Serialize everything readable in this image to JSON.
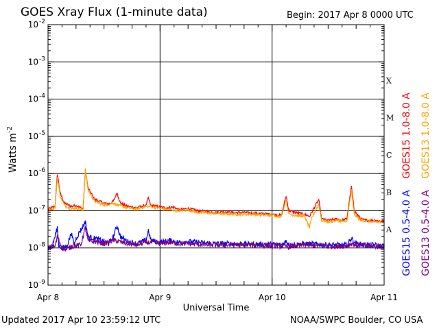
{
  "header": {
    "title": "GOES Xray Flux (1-minute data)",
    "begin": "Begin:  2017 Apr 8 0000 UTC"
  },
  "footer": {
    "updated": "Updated 2017 Apr 10 23:59:12 UTC",
    "credit": "NOAA/SWPC Boulder, CO USA"
  },
  "chart_data": {
    "type": "line",
    "title": "GOES Xray Flux (1-minute data)",
    "xlabel": "Universal Time",
    "ylabel": "Watts m",
    "ylabel_sup": "-2",
    "yscale": "log",
    "ylim": [
      1e-09,
      0.01
    ],
    "xlim": [
      0,
      72
    ],
    "x_unit": "hours since 2017 Apr 8 0000 UTC",
    "x_ticks": [
      {
        "x": 0,
        "label": "Apr 8"
      },
      {
        "x": 24,
        "label": "Apr 9"
      },
      {
        "x": 48,
        "label": "Apr 10"
      },
      {
        "x": 72,
        "label": "Apr 11"
      }
    ],
    "y_ticks": [
      {
        "exp": -9
      },
      {
        "exp": -8
      },
      {
        "exp": -7
      },
      {
        "exp": -6
      },
      {
        "exp": -5
      },
      {
        "exp": -4
      },
      {
        "exp": -3
      },
      {
        "exp": -2
      }
    ],
    "flare_classes": [
      {
        "label": "A",
        "exp": -8
      },
      {
        "label": "B",
        "exp": -7
      },
      {
        "label": "C",
        "exp": -6
      },
      {
        "label": "M",
        "exp": -5
      },
      {
        "label": "X",
        "exp": -4
      }
    ],
    "grid": "horizontal lines at each decade from 1e-8 to 1e-3",
    "series": [
      {
        "name": "GOES15 1.0-8.0 A",
        "color": "#ff0000",
        "points": [
          [
            0,
            1.1e-07
          ],
          [
            1.5,
            1.3e-07
          ],
          [
            2.0,
            1e-06
          ],
          [
            2.6,
            3e-07
          ],
          [
            3.5,
            1.6e-07
          ],
          [
            5.0,
            1.3e-07
          ],
          [
            6.0,
            1.4e-07
          ],
          [
            7.5,
            1.1e-07
          ],
          [
            8.0,
            1.2e-06
          ],
          [
            8.6,
            4e-07
          ],
          [
            10.0,
            2e-07
          ],
          [
            12.0,
            1.6e-07
          ],
          [
            13.0,
            1.5e-07
          ],
          [
            14.0,
            1.8e-07
          ],
          [
            14.8,
            3e-07
          ],
          [
            15.5,
            1.6e-07
          ],
          [
            17.0,
            1.3e-07
          ],
          [
            19.0,
            1.2e-07
          ],
          [
            21.0,
            1.4e-07
          ],
          [
            21.5,
            2.2e-07
          ],
          [
            22.0,
            1.4e-07
          ],
          [
            25.0,
            1.2e-07
          ],
          [
            27.0,
            1.25e-07
          ],
          [
            28.0,
            1.05e-07
          ],
          [
            30.0,
            1.15e-07
          ],
          [
            32.0,
            1e-07
          ],
          [
            36.0,
            9e-08
          ],
          [
            38.0,
            9.5e-08
          ],
          [
            40.0,
            8.8e-08
          ],
          [
            42.0,
            9e-08
          ],
          [
            44.0,
            8.5e-08
          ],
          [
            48.0,
            8e-08
          ],
          [
            50.0,
            7.5e-08
          ],
          [
            51.0,
            2.5e-07
          ],
          [
            51.6,
            1e-07
          ],
          [
            53.0,
            9e-08
          ],
          [
            55.0,
            8e-08
          ],
          [
            56.0,
            7e-08
          ],
          [
            58.0,
            2e-07
          ],
          [
            58.6,
            6e-08
          ],
          [
            60.0,
            5.5e-08
          ],
          [
            62.0,
            6e-08
          ],
          [
            63.0,
            5.5e-08
          ],
          [
            64.0,
            6e-08
          ],
          [
            65.0,
            4.5e-07
          ],
          [
            65.6,
            1e-07
          ],
          [
            67.0,
            6e-08
          ],
          [
            68.0,
            5.5e-08
          ],
          [
            70.0,
            5.5e-08
          ],
          [
            72.0,
            5.2e-08
          ]
        ]
      },
      {
        "name": "GOES13 1.0-8.0 A",
        "color": "#ffa500",
        "points": [
          [
            0,
            1e-07
          ],
          [
            1.5,
            1.2e-07
          ],
          [
            2.0,
            8e-07
          ],
          [
            2.6,
            2.5e-07
          ],
          [
            3.5,
            1.4e-07
          ],
          [
            5.0,
            1.1e-07
          ],
          [
            6.0,
            1.2e-07
          ],
          [
            7.5,
            1e-07
          ],
          [
            8.0,
            1.3e-06
          ],
          [
            8.6,
            3.5e-07
          ],
          [
            10.0,
            1.8e-07
          ],
          [
            12.0,
            1.4e-07
          ],
          [
            14.0,
            1.6e-07
          ],
          [
            15.0,
            1.4e-07
          ],
          [
            17.0,
            1.2e-07
          ],
          [
            19.0,
            1.1e-07
          ],
          [
            21.0,
            1.3e-07
          ],
          [
            22.0,
            1.3e-07
          ],
          [
            25.0,
            1.1e-07
          ],
          [
            28.0,
            1e-07
          ],
          [
            30.0,
            1.05e-07
          ],
          [
            32.0,
            9e-08
          ],
          [
            36.0,
            8.5e-08
          ],
          [
            40.0,
            8e-08
          ],
          [
            44.0,
            8e-08
          ],
          [
            48.0,
            7.5e-08
          ],
          [
            50.0,
            7e-08
          ],
          [
            51.0,
            2e-07
          ],
          [
            51.6,
            8e-08
          ],
          [
            53.0,
            7.5e-08
          ],
          [
            55.0,
            7e-08
          ],
          [
            56.0,
            3.5e-08
          ],
          [
            56.5,
            6.5e-08
          ],
          [
            58.0,
            1.5e-07
          ],
          [
            58.6,
            5.5e-08
          ],
          [
            60.0,
            5e-08
          ],
          [
            62.0,
            5.5e-08
          ],
          [
            64.0,
            5e-08
          ],
          [
            65.0,
            3.5e-07
          ],
          [
            65.6,
            8e-08
          ],
          [
            67.0,
            5.5e-08
          ],
          [
            70.0,
            5e-08
          ],
          [
            72.0,
            4.8e-08
          ]
        ]
      },
      {
        "name": "GOES15 0.5-4.0 A",
        "color": "#0000ff",
        "points": [
          [
            0,
            1e-08
          ],
          [
            1.0,
            1.2e-08
          ],
          [
            2.0,
            3.5e-08
          ],
          [
            2.3,
            1.2e-08
          ],
          [
            3.0,
            1e-08
          ],
          [
            4.0,
            1.1e-08
          ],
          [
            5.0,
            2.5e-08
          ],
          [
            5.6,
            1.2e-08
          ],
          [
            6.0,
            1.8e-08
          ],
          [
            7.0,
            3e-08
          ],
          [
            8.0,
            5e-08
          ],
          [
            8.6,
            2e-08
          ],
          [
            10.0,
            1.8e-08
          ],
          [
            12.0,
            1.5e-08
          ],
          [
            13.0,
            1.3e-08
          ],
          [
            14.0,
            2e-08
          ],
          [
            14.8,
            4e-08
          ],
          [
            15.5,
            2e-08
          ],
          [
            17.0,
            1.5e-08
          ],
          [
            19.0,
            1.3e-08
          ],
          [
            21.0,
            1.6e-08
          ],
          [
            21.5,
            3e-08
          ],
          [
            22.0,
            1.6e-08
          ],
          [
            24.0,
            1.4e-08
          ],
          [
            26.0,
            1.6e-08
          ],
          [
            28.0,
            1.4e-08
          ],
          [
            30.0,
            1.5e-08
          ],
          [
            32.0,
            1.4e-08
          ],
          [
            36.0,
            1.3e-08
          ],
          [
            40.0,
            1.3e-08
          ],
          [
            44.0,
            1.25e-08
          ],
          [
            48.0,
            1.25e-08
          ],
          [
            50.0,
            1.2e-08
          ],
          [
            51.0,
            1.5e-08
          ],
          [
            52.0,
            1.2e-08
          ],
          [
            55.0,
            1.3e-08
          ],
          [
            58.0,
            1.25e-08
          ],
          [
            61.0,
            1.2e-08
          ],
          [
            62.0,
            1.2e-08
          ],
          [
            64.0,
            1.2e-08
          ],
          [
            65.0,
            1.8e-08
          ],
          [
            66.0,
            1.3e-08
          ],
          [
            68.0,
            1.2e-08
          ],
          [
            70.0,
            1.2e-08
          ],
          [
            72.0,
            1.1e-08
          ]
        ]
      },
      {
        "name": "GOES13 0.5-4.0 A",
        "color": "#800080",
        "points": [
          [
            0,
            1e-08
          ],
          [
            1.5,
            1.1e-08
          ],
          [
            2.0,
            2e-08
          ],
          [
            3.0,
            1e-08
          ],
          [
            4.0,
            9e-09
          ],
          [
            5.0,
            1.1e-08
          ],
          [
            7.0,
            1.2e-08
          ],
          [
            8.0,
            3.5e-08
          ],
          [
            8.6,
            1.5e-08
          ],
          [
            10.0,
            1.5e-08
          ],
          [
            12.0,
            1.3e-08
          ],
          [
            14.0,
            1.6e-08
          ],
          [
            15.0,
            1.5e-08
          ],
          [
            17.0,
            1.3e-08
          ],
          [
            19.0,
            1.2e-08
          ],
          [
            21.0,
            1.4e-08
          ],
          [
            22.0,
            1.4e-08
          ],
          [
            24.0,
            1.3e-08
          ],
          [
            26.0,
            1.4e-08
          ],
          [
            28.0,
            1.3e-08
          ],
          [
            30.0,
            1.3e-08
          ],
          [
            32.0,
            1.25e-08
          ],
          [
            36.0,
            1.2e-08
          ],
          [
            40.0,
            1.2e-08
          ],
          [
            44.0,
            1.2e-08
          ],
          [
            48.0,
            1.15e-08
          ],
          [
            50.0,
            1.1e-08
          ],
          [
            52.0,
            1.1e-08
          ],
          [
            55.0,
            1.2e-08
          ],
          [
            58.0,
            1.15e-08
          ],
          [
            61.0,
            1.1e-08
          ],
          [
            62.0,
            1.1e-08
          ],
          [
            64.0,
            1.15e-08
          ],
          [
            65.0,
            1.3e-08
          ],
          [
            66.0,
            1.2e-08
          ],
          [
            68.0,
            1.15e-08
          ],
          [
            70.0,
            1.1e-08
          ],
          [
            72.0,
            1.1e-08
          ]
        ]
      }
    ]
  }
}
